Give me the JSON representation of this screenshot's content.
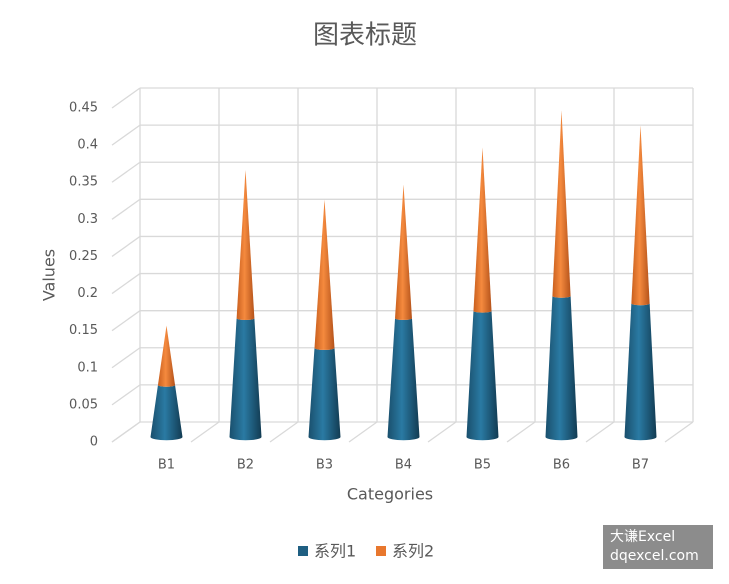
{
  "chart_data": {
    "type": "cone3d",
    "title": "图表标题",
    "x_label": "Categories",
    "y_label": "Values",
    "categories": [
      "B1",
      "B2",
      "B3",
      "B4",
      "B5",
      "B6",
      "B7"
    ],
    "series": [
      {
        "name": "系列1",
        "color": "#1f5f82",
        "values": [
          0.07,
          0.16,
          0.12,
          0.16,
          0.17,
          0.19,
          0.18
        ]
      },
      {
        "name": "系列2",
        "color": "#e8772e",
        "values": [
          0.08,
          0.2,
          0.2,
          0.18,
          0.22,
          0.25,
          0.24
        ]
      }
    ],
    "stacked": true,
    "ylim": [
      0,
      0.45
    ],
    "yticks": [
      0,
      0.05,
      0.1,
      0.15,
      0.2,
      0.25,
      0.3,
      0.35,
      0.4,
      0.45
    ],
    "grid": true,
    "legend": "bottom"
  },
  "watermark": {
    "line1": "大谦Excel",
    "line2": "dqexcel.com"
  }
}
